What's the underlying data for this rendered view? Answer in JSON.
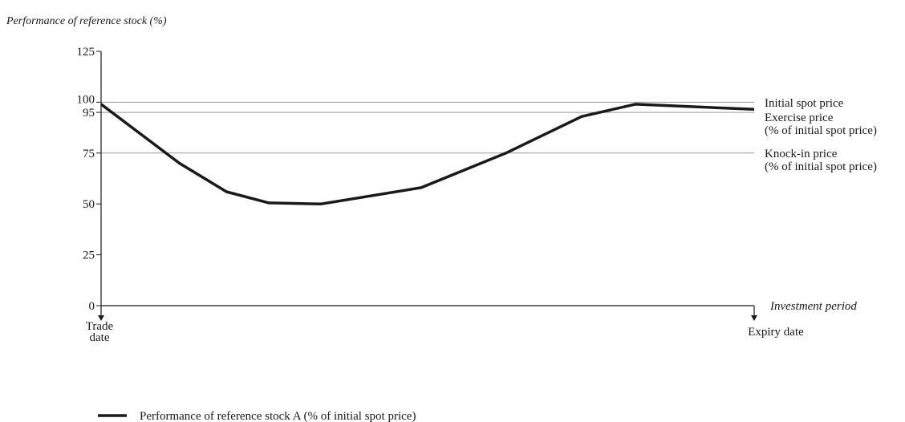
{
  "chart_data": {
    "type": "line",
    "ylabel": "Performance of reference stock (%)",
    "xlabel": "Investment period",
    "ylim": [
      0,
      125
    ],
    "yticks": [
      0,
      25,
      50,
      75,
      95,
      100,
      125
    ],
    "grid": false,
    "legend_position": "bottom-left",
    "start_label_lines": [
      "Trade",
      "date"
    ],
    "end_label": "Expiry date",
    "reference_lines": [
      {
        "value": 100,
        "label_lines": [
          "Initial spot price"
        ]
      },
      {
        "value": 95,
        "label_lines": [
          "Exercise price",
          "(% of initial spot price)"
        ]
      },
      {
        "value": 75,
        "label_lines": [
          "Knock-in price",
          "(% of initial spot price)"
        ]
      }
    ],
    "series": [
      {
        "name": "Performance of reference stock A (% of initial spot price)",
        "color": "#1a1a1a",
        "points": [
          [
            0,
            99
          ],
          [
            12.0,
            70
          ],
          [
            19.2,
            56
          ],
          [
            25.7,
            50.5
          ],
          [
            33.7,
            50
          ],
          [
            49.0,
            58
          ],
          [
            62.0,
            75
          ],
          [
            73.6,
            93
          ],
          [
            81.8,
            99
          ],
          [
            100,
            96.5
          ]
        ]
      }
    ]
  }
}
